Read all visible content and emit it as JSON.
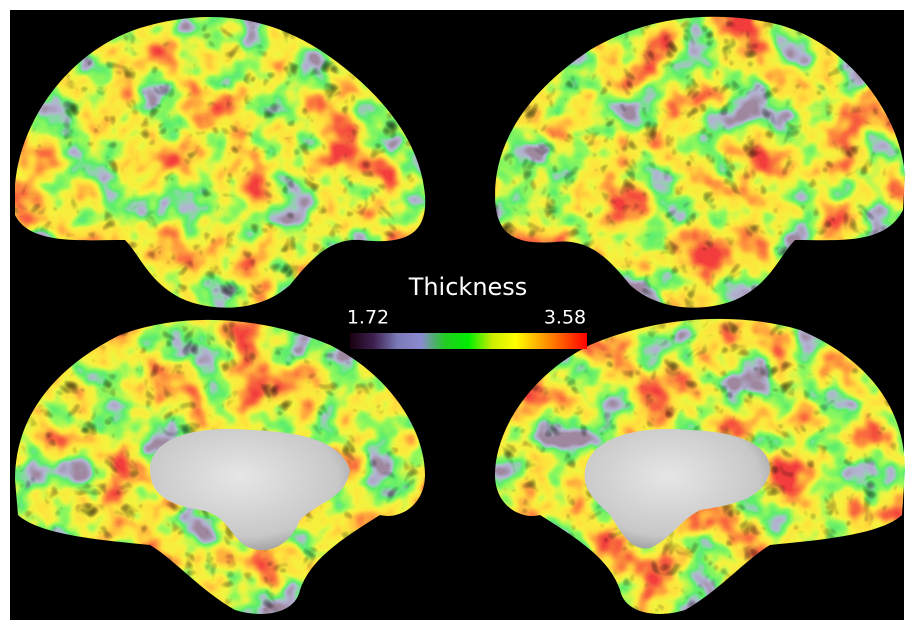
{
  "colorbar": {
    "title": "Thickness",
    "min": 1.72,
    "max": 3.58,
    "colors": [
      "#1a0010",
      "#3d2050",
      "#7a7ab8",
      "#8a8ad0",
      "#22cc22",
      "#00ee00",
      "#ccee00",
      "#ffff00",
      "#ffaa00",
      "#ff5500",
      "#ff0000"
    ]
  }
}
